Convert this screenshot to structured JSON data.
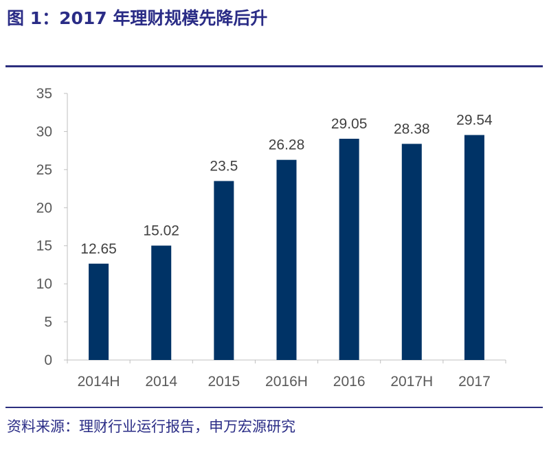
{
  "header": {
    "title": "图 1：2017 年理财规模先降后升"
  },
  "footer": {
    "source": "资料来源：理财行业运行报告，申万宏源研究"
  },
  "colors": {
    "bar": "#003366",
    "rule": "#2b2e7e",
    "title": "#2a2c86"
  },
  "chart_data": {
    "type": "bar",
    "title": "",
    "xlabel": "",
    "ylabel": "",
    "categories": [
      "2014H",
      "2014",
      "2015",
      "2016H",
      "2016",
      "2017H",
      "2017"
    ],
    "values": [
      12.65,
      15.02,
      23.5,
      26.28,
      29.05,
      28.38,
      29.54
    ],
    "value_labels": [
      "12.65",
      "15.02",
      "23.5",
      "26.28",
      "29.05",
      "28.38",
      "29.54"
    ],
    "ylim": [
      0,
      35
    ],
    "yticks": [
      0,
      5,
      10,
      15,
      20,
      25,
      30,
      35
    ],
    "grid": false,
    "legend": "none"
  }
}
